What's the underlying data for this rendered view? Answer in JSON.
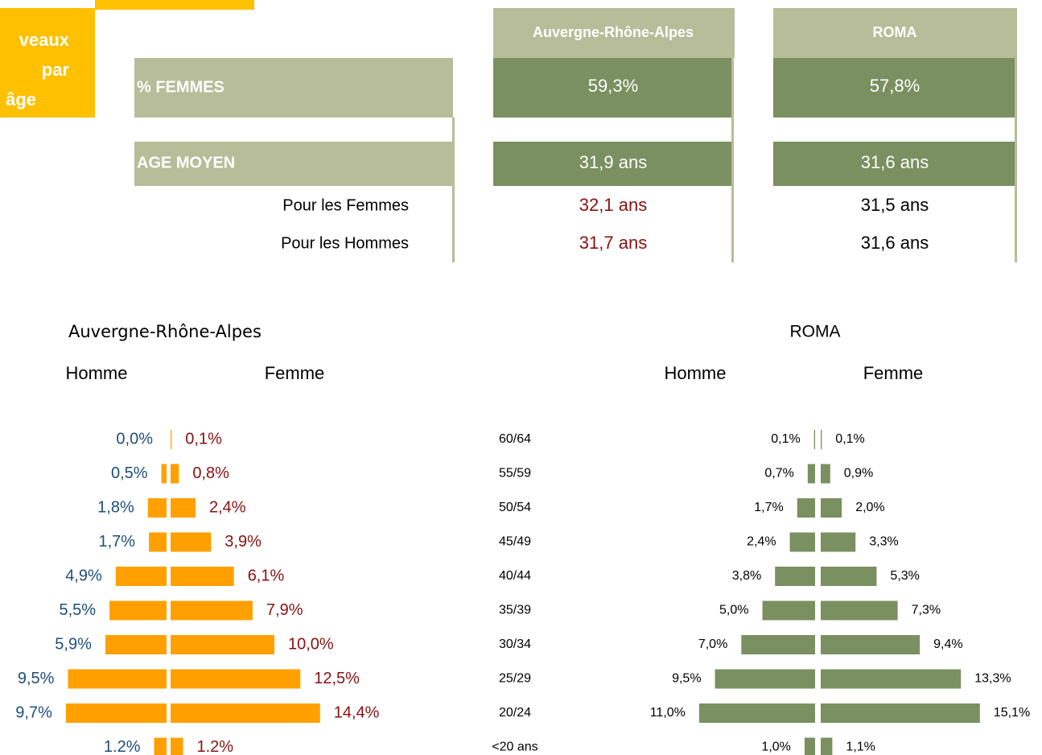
{
  "badge": [
    "veaux",
    "par",
    "âge"
  ],
  "table": {
    "headers": [
      "Auvergne-Rhône-Alpes",
      "ROMA"
    ],
    "rows": [
      {
        "label": "% FEMMES",
        "values": [
          "59,3%",
          "57,8%"
        ]
      },
      {
        "label": "AGE MOYEN",
        "values": [
          "31,9 ans",
          "31,6 ans"
        ]
      },
      {
        "label": "Pour les Femmes",
        "values": [
          "32,1 ans",
          "31,5 ans"
        ]
      },
      {
        "label": "Pour les Hommes",
        "values": [
          "31,7 ans",
          "31,6 ans"
        ]
      }
    ]
  },
  "chart_data": [
    {
      "type": "pyramid",
      "title": "Auvergne-Rhône-Alpes",
      "categories": [
        "60/64",
        "55/59",
        "50/54",
        "45/49",
        "40/44",
        "35/39",
        "30/34",
        "25/29",
        "20/24",
        "<20 ans"
      ],
      "series": [
        {
          "name": "Homme",
          "color": "#ffa000",
          "values": [
            0.0,
            0.5,
            1.8,
            1.7,
            4.9,
            5.5,
            5.9,
            9.5,
            9.7,
            1.2
          ],
          "value_labels": [
            "0,0%",
            "0,5%",
            "1,8%",
            "1,7%",
            "4,9%",
            "5,5%",
            "5,9%",
            "9,5%",
            "9,7%",
            "1.2%"
          ]
        },
        {
          "name": "Femme",
          "color": "#ffa000",
          "values": [
            0.1,
            0.8,
            2.4,
            3.9,
            6.1,
            7.9,
            10.0,
            12.5,
            14.4,
            1.2
          ],
          "value_labels": [
            "0,1%",
            "0,8%",
            "2,4%",
            "3,9%",
            "6,1%",
            "7,9%",
            "10,0%",
            "12,5%",
            "14,4%",
            "1.2%"
          ]
        }
      ]
    },
    {
      "type": "pyramid",
      "title": "ROMA",
      "series": [
        {
          "name": "Homme",
          "color": "#7a9060",
          "values": [
            0.1,
            0.7,
            1.7,
            2.4,
            3.8,
            5.0,
            7.0,
            9.5,
            11.0,
            1.0
          ],
          "value_labels": [
            "0,1%",
            "0,7%",
            "1,7%",
            "2,4%",
            "3,8%",
            "5,0%",
            "7,0%",
            "9,5%",
            "11,0%",
            "1,0%"
          ]
        },
        {
          "name": "Femme",
          "color": "#7a9060",
          "values": [
            0.1,
            0.9,
            2.0,
            3.3,
            5.3,
            7.3,
            9.4,
            13.3,
            15.1,
            1.1
          ],
          "value_labels": [
            "0,1%",
            "0,9%",
            "2,0%",
            "3,3%",
            "5,3%",
            "7,3%",
            "9,4%",
            "13,3%",
            "15,1%",
            "1,1%"
          ]
        }
      ]
    }
  ]
}
